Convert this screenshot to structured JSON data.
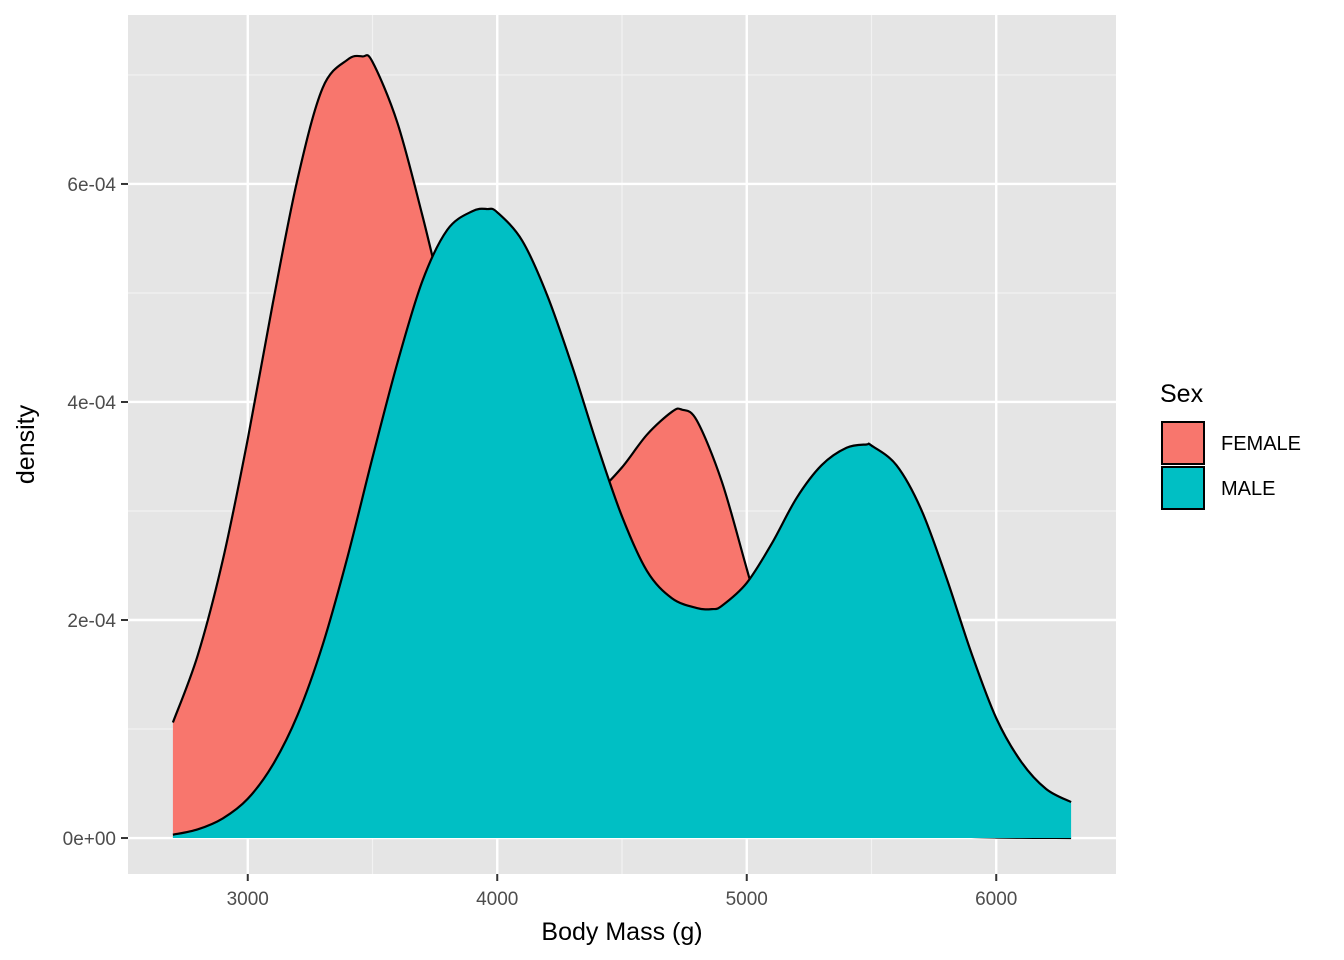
{
  "chart_data": {
    "type": "area",
    "xlabel": "Body Mass (g)",
    "ylabel": "density",
    "xlim": [
      2520,
      6480
    ],
    "ylim": [
      -3.3e-05,
      0.000755
    ],
    "x_ticks": [
      3000,
      4000,
      5000,
      6000
    ],
    "x_tick_labels": [
      "3000",
      "4000",
      "5000",
      "6000"
    ],
    "y_ticks": [
      0,
      0.0002,
      0.0004,
      0.0006
    ],
    "y_tick_labels": [
      "0e+00",
      "2e-04",
      "4e-04",
      "6e-04"
    ],
    "grid": true,
    "legend": {
      "title": "Sex",
      "position": "right"
    },
    "series": [
      {
        "name": "FEMALE",
        "color": "#F8766D",
        "x": [
          2700,
          2800,
          2900,
          3000,
          3100,
          3200,
          3300,
          3400,
          3460,
          3500,
          3600,
          3700,
          3800,
          3900,
          4000,
          4100,
          4200,
          4300,
          4400,
          4500,
          4600,
          4700,
          4740,
          4800,
          4900,
          5000,
          5100,
          5200,
          5300,
          5400,
          5500,
          5600,
          5700,
          5800,
          5900,
          6000,
          6100,
          6200,
          6300
        ],
        "y": [
          0.000106,
          0.000168,
          0.000255,
          0.000366,
          0.00049,
          0.000605,
          0.000688,
          0.000714,
          0.000717,
          0.000712,
          0.000656,
          0.000571,
          0.000478,
          0.0004,
          0.000349,
          0.000321,
          0.000307,
          0.000306,
          0.000317,
          0.00034,
          0.00037,
          0.000391,
          0.000393,
          0.000383,
          0.000327,
          0.000247,
          0.000166,
          9.8e-05,
          5.2e-05,
          2.6e-05,
          1.3e-05,
          7e-06,
          4e-06,
          2e-06,
          1e-06,
          5e-07,
          2e-07,
          1e-07,
          0.0
        ]
      },
      {
        "name": "MALE",
        "color": "#00BFC4",
        "x": [
          2700,
          2800,
          2900,
          3000,
          3100,
          3200,
          3300,
          3400,
          3500,
          3600,
          3700,
          3800,
          3900,
          3960,
          4000,
          4100,
          4200,
          4300,
          4400,
          4500,
          4600,
          4700,
          4800,
          4860,
          4900,
          5000,
          5100,
          5200,
          5300,
          5400,
          5480,
          5500,
          5600,
          5700,
          5800,
          5900,
          6000,
          6100,
          6200,
          6300
        ],
        "y": [
          3e-06,
          8e-06,
          1.8e-05,
          3.6e-05,
          6.7e-05,
          0.000113,
          0.000177,
          0.000258,
          0.000349,
          0.000436,
          0.000511,
          0.000558,
          0.000575,
          0.000577,
          0.000574,
          0.000548,
          0.000498,
          0.000433,
          0.000361,
          0.000295,
          0.000245,
          0.00022,
          0.000211,
          0.00021,
          0.000213,
          0.000234,
          0.00027,
          0.000312,
          0.000342,
          0.000358,
          0.000361,
          0.00036,
          0.000342,
          0.000301,
          0.000239,
          0.00017,
          0.00011,
          7e-05,
          4.5e-05,
          3.3e-05
        ]
      }
    ]
  }
}
